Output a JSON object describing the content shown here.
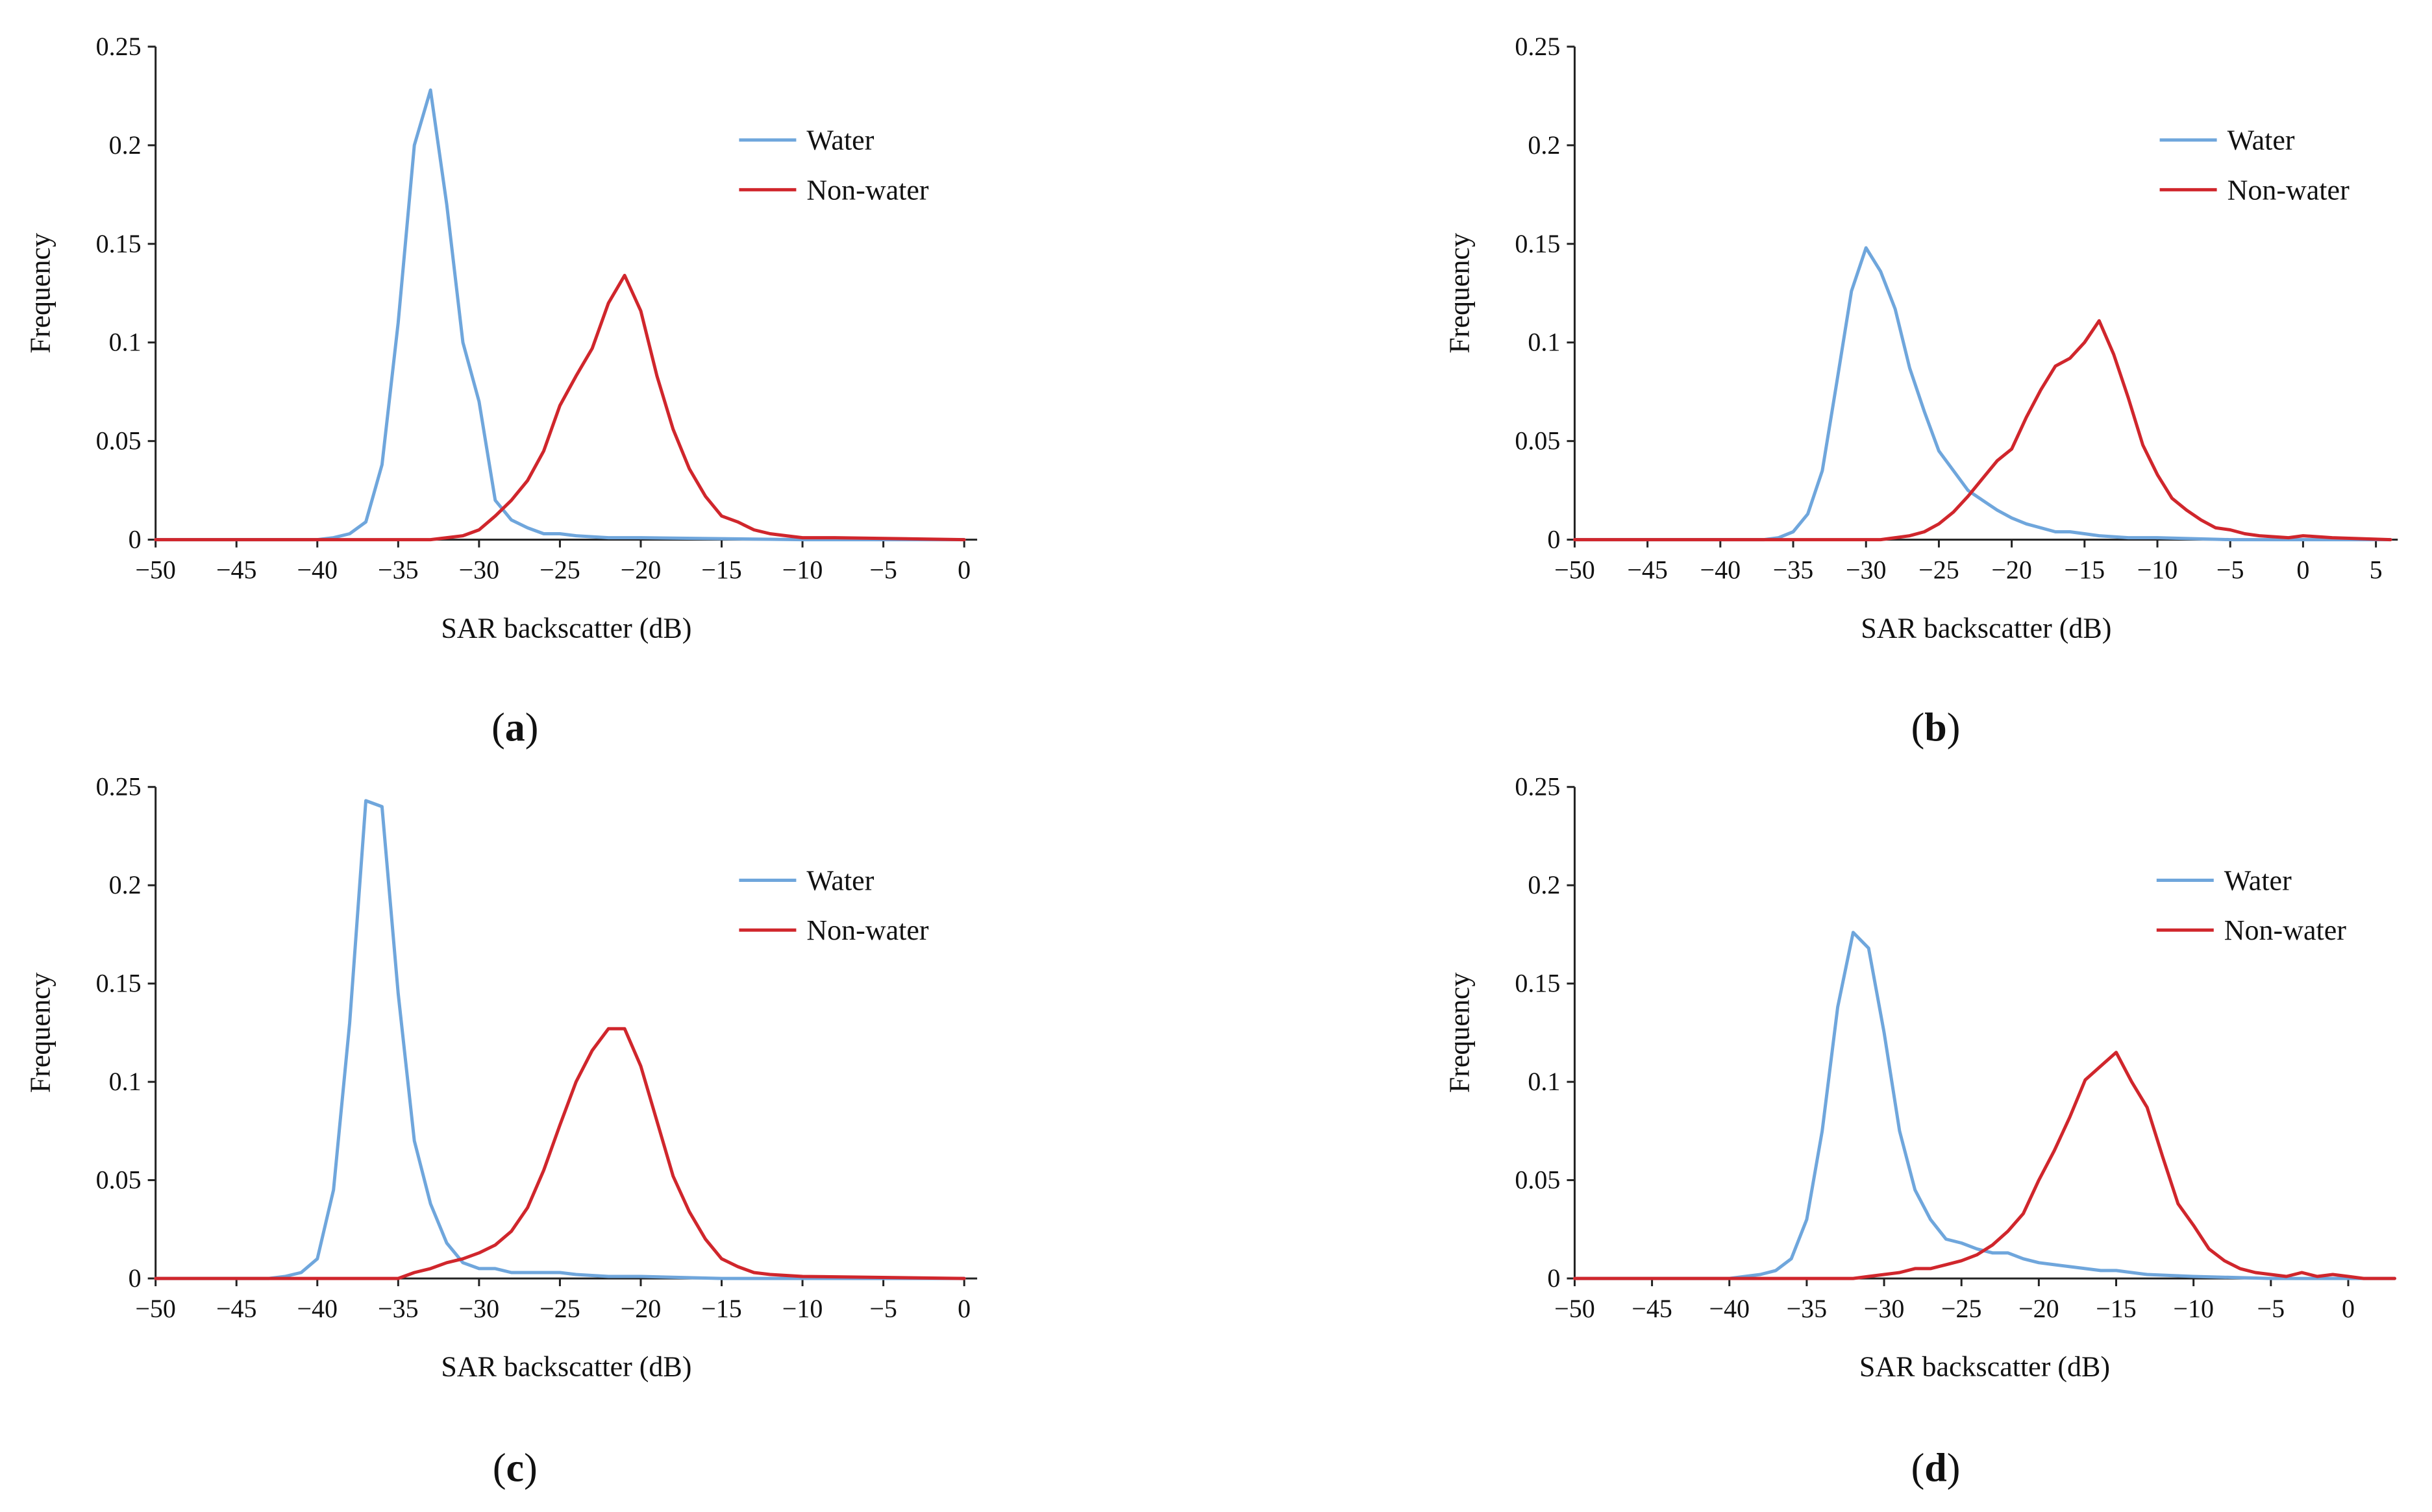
{
  "colors": {
    "water": "#6fa6dc",
    "nonwater": "#d0262c",
    "axis": "#222222"
  },
  "chart_data": [
    {
      "type": "line",
      "panel": "a",
      "caption": {
        "open": "(",
        "letter": "a",
        "close": ")"
      },
      "xlabel": "SAR backscatter (dB)",
      "ylabel": "Frequency",
      "xlim": [
        -50,
        0.8
      ],
      "ylim": [
        0,
        0.25
      ],
      "xticks": [
        -50,
        -45,
        -40,
        -35,
        -30,
        -25,
        -20,
        -15,
        -10,
        -5,
        0
      ],
      "xtick_labels": [
        "−50",
        "−45",
        "−40",
        "−35",
        "−30",
        "−25",
        "−20",
        "−15",
        "−10",
        "−5",
        "0"
      ],
      "yticks": [
        0,
        0.05,
        0.1,
        0.15,
        0.2,
        0.25
      ],
      "ytick_labels": [
        "0",
        "0.05",
        "0.1",
        "0.15",
        "0.2",
        "0.25"
      ],
      "legend": [
        "Water",
        "Non-water"
      ],
      "series": [
        {
          "name": "Water",
          "x": [
            -50,
            -40,
            -39,
            -38,
            -37,
            -36,
            -35,
            -34,
            -33,
            -32,
            -31,
            -30,
            -29,
            -28,
            -27,
            -26,
            -25,
            -24,
            -22,
            -20,
            -15,
            -10,
            0
          ],
          "y": [
            0,
            0,
            0.001,
            0.003,
            0.009,
            0.038,
            0.11,
            0.2,
            0.228,
            0.17,
            0.1,
            0.07,
            0.02,
            0.01,
            0.006,
            0.003,
            0.003,
            0.002,
            0.001,
            0.001,
            0.0005,
            0,
            0
          ]
        },
        {
          "name": "Non-water",
          "x": [
            -50,
            -33,
            -32,
            -31,
            -30,
            -29,
            -28,
            -27,
            -26,
            -25,
            -24,
            -23,
            -22,
            -21,
            -20,
            -19,
            -18,
            -17,
            -16,
            -15,
            -14,
            -13,
            -12,
            -11,
            -10,
            -8,
            0
          ],
          "y": [
            0,
            0,
            0.001,
            0.002,
            0.005,
            0.012,
            0.02,
            0.03,
            0.045,
            0.068,
            0.083,
            0.097,
            0.12,
            0.134,
            0.116,
            0.083,
            0.056,
            0.036,
            0.022,
            0.012,
            0.009,
            0.005,
            0.003,
            0.002,
            0.001,
            0.001,
            0
          ]
        }
      ]
    },
    {
      "type": "line",
      "panel": "b",
      "caption": {
        "open": "(",
        "letter": "b",
        "close": ")"
      },
      "xlabel": "SAR backscatter (dB)",
      "ylabel": "Frequency",
      "xlim": [
        -50,
        6.5
      ],
      "ylim": [
        0,
        0.25
      ],
      "xticks": [
        -50,
        -45,
        -40,
        -35,
        -30,
        -25,
        -20,
        -15,
        -10,
        -5,
        0,
        5
      ],
      "xtick_labels": [
        "−50",
        "−45",
        "−40",
        "−35",
        "−30",
        "−25",
        "−20",
        "−15",
        "−10",
        "−5",
        "0",
        "5"
      ],
      "yticks": [
        0,
        0.05,
        0.1,
        0.15,
        0.2,
        0.25
      ],
      "ytick_labels": [
        "0",
        "0.05",
        "0.1",
        "0.15",
        "0.2",
        "0.25"
      ],
      "legend": [
        "Water",
        "Non-water"
      ],
      "series": [
        {
          "name": "Water",
          "x": [
            -50,
            -37,
            -36,
            -35,
            -34,
            -33,
            -32,
            -31,
            -30,
            -29,
            -28,
            -27,
            -26,
            -25,
            -24,
            -23,
            -22,
            -21,
            -20,
            -19,
            -18,
            -17,
            -16,
            -15,
            -14,
            -12,
            -10,
            -5,
            0,
            6
          ],
          "y": [
            0,
            0,
            0.001,
            0.004,
            0.013,
            0.035,
            0.08,
            0.126,
            0.148,
            0.136,
            0.117,
            0.087,
            0.065,
            0.045,
            0.035,
            0.025,
            0.02,
            0.015,
            0.011,
            0.008,
            0.006,
            0.004,
            0.004,
            0.003,
            0.002,
            0.001,
            0.001,
            0,
            0,
            0
          ]
        },
        {
          "name": "Non-water",
          "x": [
            -50,
            -29,
            -28,
            -27,
            -26,
            -25,
            -24,
            -23,
            -22,
            -21,
            -20,
            -19,
            -18,
            -17,
            -16,
            -15,
            -14,
            -13,
            -12,
            -11,
            -10,
            -9,
            -8,
            -7,
            -6,
            -5,
            -4,
            -3,
            -1,
            0,
            2,
            6
          ],
          "y": [
            0,
            0,
            0.001,
            0.002,
            0.004,
            0.008,
            0.014,
            0.022,
            0.031,
            0.04,
            0.046,
            0.062,
            0.076,
            0.088,
            0.092,
            0.1,
            0.111,
            0.094,
            0.072,
            0.048,
            0.033,
            0.021,
            0.015,
            0.01,
            0.006,
            0.005,
            0.003,
            0.002,
            0.001,
            0.002,
            0.001,
            0
          ]
        }
      ]
    },
    {
      "type": "line",
      "panel": "c",
      "caption": {
        "open": "(",
        "letter": "c",
        "close": ")"
      },
      "xlabel": "SAR backscatter (dB)",
      "ylabel": "Frequency",
      "xlim": [
        -50,
        0.8
      ],
      "ylim": [
        0,
        0.25
      ],
      "xticks": [
        -50,
        -45,
        -40,
        -35,
        -30,
        -25,
        -20,
        -15,
        -10,
        -5,
        0
      ],
      "xtick_labels": [
        "−50",
        "−45",
        "−40",
        "−35",
        "−30",
        "−25",
        "−20",
        "−15",
        "−10",
        "−5",
        "0"
      ],
      "yticks": [
        0,
        0.05,
        0.1,
        0.15,
        0.2,
        0.25
      ],
      "ytick_labels": [
        "0",
        "0.05",
        "0.1",
        "0.15",
        "0.2",
        "0.25"
      ],
      "legend": [
        "Water",
        "Non-water"
      ],
      "series": [
        {
          "name": "Water",
          "x": [
            -50,
            -43,
            -42,
            -41,
            -40,
            -39,
            -38,
            -37,
            -36,
            -35,
            -34,
            -33,
            -32,
            -31,
            -30,
            -29,
            -28,
            -27,
            -26,
            -25,
            -24,
            -22,
            -20,
            -15,
            -10,
            0
          ],
          "y": [
            0,
            0,
            0.001,
            0.003,
            0.01,
            0.045,
            0.13,
            0.243,
            0.24,
            0.145,
            0.07,
            0.038,
            0.018,
            0.008,
            0.005,
            0.005,
            0.003,
            0.003,
            0.003,
            0.003,
            0.002,
            0.001,
            0.001,
            0,
            0,
            0
          ]
        },
        {
          "name": "Non-water",
          "x": [
            -50,
            -35,
            -34,
            -33,
            -32,
            -31,
            -30,
            -29,
            -28,
            -27,
            -26,
            -25,
            -24,
            -23,
            -22,
            -21,
            -20,
            -19,
            -18,
            -17,
            -16,
            -15,
            -14,
            -13,
            -12,
            -10,
            0
          ],
          "y": [
            0,
            0,
            0.003,
            0.005,
            0.008,
            0.01,
            0.013,
            0.017,
            0.024,
            0.036,
            0.055,
            0.078,
            0.1,
            0.116,
            0.127,
            0.127,
            0.108,
            0.08,
            0.052,
            0.034,
            0.02,
            0.01,
            0.006,
            0.003,
            0.002,
            0.001,
            0
          ]
        }
      ]
    },
    {
      "type": "line",
      "panel": "d",
      "caption": {
        "open": "(",
        "letter": "d",
        "close": ")"
      },
      "xlabel": "SAR backscatter (dB)",
      "ylabel": "Frequency",
      "xlim": [
        -50,
        3
      ],
      "ylim": [
        0,
        0.25
      ],
      "xticks": [
        -50,
        -45,
        -40,
        -35,
        -30,
        -25,
        -20,
        -15,
        -10,
        -5,
        0
      ],
      "xtick_labels": [
        "−50",
        "−45",
        "−40",
        "−35",
        "−30",
        "−25",
        "−20",
        "−15",
        "−10",
        "−5",
        "0"
      ],
      "yticks": [
        0,
        0.05,
        0.1,
        0.15,
        0.2,
        0.25
      ],
      "ytick_labels": [
        "0",
        "0.05",
        "0.1",
        "0.15",
        "0.2",
        "0.25"
      ],
      "legend": [
        "Water",
        "Non-water"
      ],
      "series": [
        {
          "name": "Water",
          "x": [
            -50,
            -40,
            -39,
            -38,
            -37,
            -36,
            -35,
            -34,
            -33,
            -32,
            -31,
            -30,
            -29,
            -28,
            -27,
            -26,
            -25,
            -24,
            -23,
            -22,
            -21,
            -20,
            -19,
            -18,
            -17,
            -16,
            -15,
            -13,
            -10,
            -5,
            0,
            3
          ],
          "y": [
            0,
            0,
            0.001,
            0.002,
            0.004,
            0.01,
            0.03,
            0.075,
            0.138,
            0.176,
            0.168,
            0.125,
            0.075,
            0.045,
            0.03,
            0.02,
            0.018,
            0.015,
            0.013,
            0.013,
            0.01,
            0.008,
            0.007,
            0.006,
            0.005,
            0.004,
            0.004,
            0.002,
            0.001,
            0,
            0,
            0
          ]
        },
        {
          "name": "Non-water",
          "x": [
            -50,
            -32,
            -31,
            -30,
            -29,
            -28,
            -27,
            -26,
            -25,
            -24,
            -23,
            -22,
            -21,
            -20,
            -19,
            -18,
            -17,
            -16,
            -15,
            -14,
            -13,
            -12,
            -11,
            -10,
            -9,
            -8,
            -7,
            -6,
            -5,
            -4,
            -3,
            -2,
            -1,
            0,
            1,
            3
          ],
          "y": [
            0,
            0,
            0.001,
            0.002,
            0.003,
            0.005,
            0.005,
            0.007,
            0.009,
            0.012,
            0.017,
            0.024,
            0.033,
            0.05,
            0.065,
            0.082,
            0.101,
            0.108,
            0.115,
            0.1,
            0.087,
            0.062,
            0.038,
            0.027,
            0.015,
            0.009,
            0.005,
            0.003,
            0.002,
            0.001,
            0.003,
            0.001,
            0.002,
            0.001,
            0,
            0
          ]
        }
      ]
    }
  ]
}
